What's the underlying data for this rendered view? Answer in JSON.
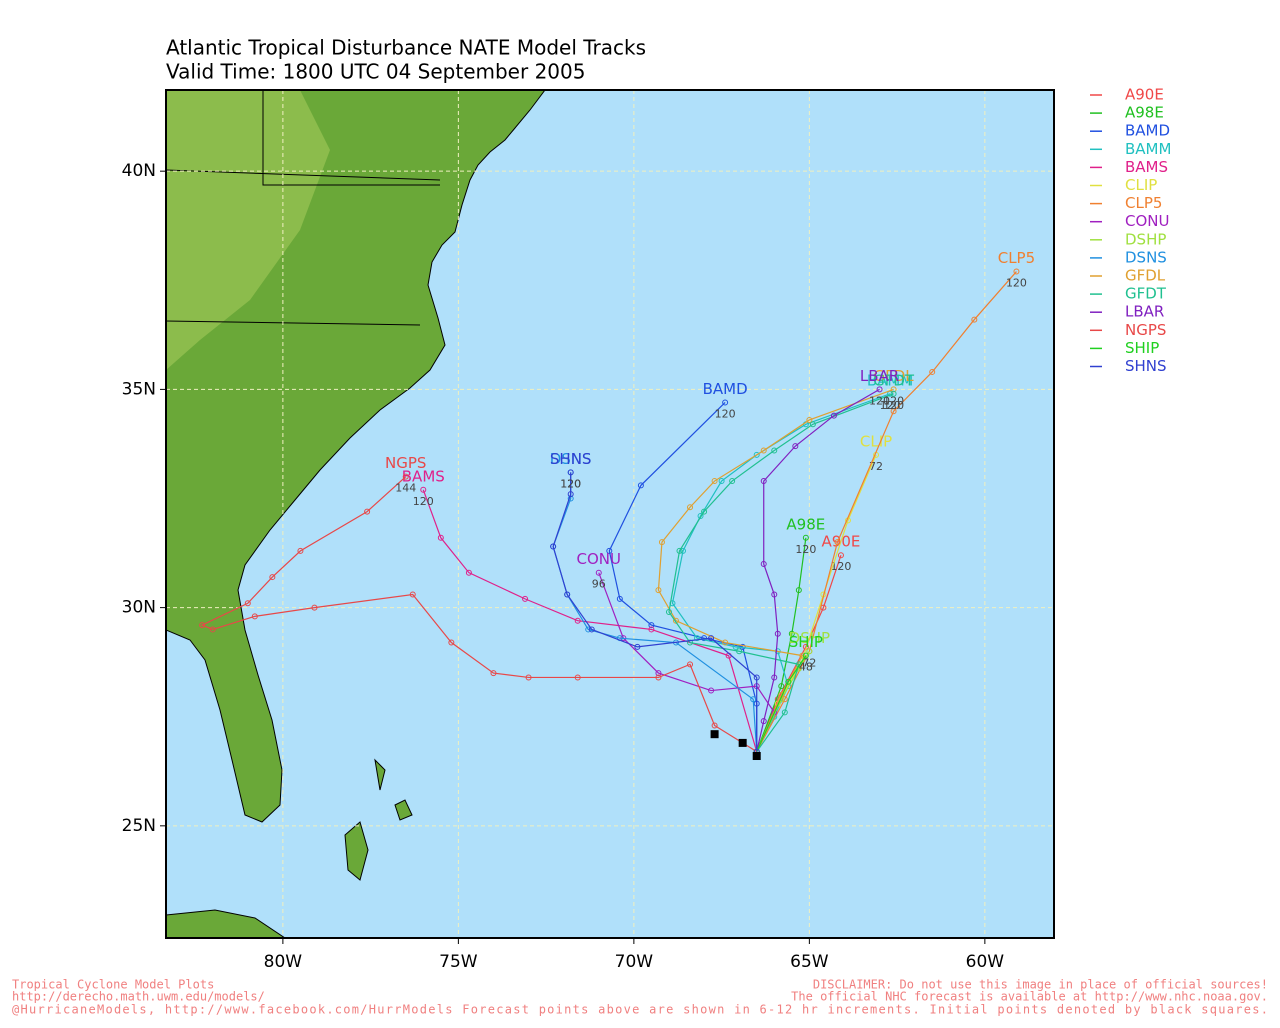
{
  "chart_data": {
    "type": "track-map",
    "title": "Atlantic Tropical Disturbance NATE Model Tracks",
    "subtitle": "Valid Time: 1800 UTC 04 September 2005",
    "xlim": [
      -83.33,
      -58.03
    ],
    "ylim": [
      22.43,
      41.86
    ],
    "xticks": [
      {
        "value": -80,
        "label": "80W"
      },
      {
        "value": -75,
        "label": "75W"
      },
      {
        "value": -70,
        "label": "70W"
      },
      {
        "value": -65,
        "label": "65W"
      },
      {
        "value": -60,
        "label": "60W"
      }
    ],
    "yticks": [
      {
        "value": 25,
        "label": "25N"
      },
      {
        "value": 30,
        "label": "30N"
      },
      {
        "value": 35,
        "label": "35N"
      },
      {
        "value": 40,
        "label": "40N"
      }
    ],
    "grid": true,
    "initial_points": {
      "lon": [
        -67.7,
        -66.9,
        -66.5
      ],
      "lat": [
        27.1,
        26.9,
        26.6
      ]
    },
    "series": [
      {
        "name": "A90E",
        "color": "#f04848",
        "end_label": "120",
        "lon": [
          -66.5,
          -65.9,
          -65.1,
          -64.6,
          -64.1
        ],
        "lat": [
          26.7,
          27.9,
          29.1,
          30.0,
          31.2
        ]
      },
      {
        "name": "A98E",
        "color": "#20c020",
        "end_label": "120",
        "lon": [
          -66.5,
          -65.8,
          -65.5,
          -65.3,
          -65.1
        ],
        "lat": [
          26.7,
          28.2,
          29.4,
          30.4,
          31.6
        ]
      },
      {
        "name": "BAMD",
        "color": "#2050e0",
        "end_label": "120",
        "lon": [
          -66.5,
          -66.5,
          -66.9,
          -68.0,
          -69.5,
          -70.4,
          -70.7,
          -69.8,
          -67.4
        ],
        "lat": [
          26.7,
          27.8,
          29.1,
          29.3,
          29.6,
          30.2,
          31.3,
          32.8,
          34.7
        ]
      },
      {
        "name": "BAMM",
        "color": "#20c0c0",
        "end_label": "120",
        "lon": [
          -66.5,
          -66.0,
          -65.6,
          -65.9,
          -67.1,
          -68.2,
          -68.9,
          -68.6,
          -68.1,
          -67.5,
          -66.5,
          -65.1,
          -62.7
        ],
        "lat": [
          26.7,
          27.5,
          28.2,
          29.0,
          29.1,
          29.3,
          30.1,
          31.3,
          32.1,
          32.9,
          33.5,
          34.2,
          34.9
        ]
      },
      {
        "name": "BAMS",
        "color": "#e0208a",
        "end_label": "120",
        "lon": [
          -66.5,
          -67.3,
          -69.5,
          -71.6,
          -73.1,
          -74.7,
          -75.5,
          -76.0
        ],
        "lat": [
          26.7,
          28.9,
          29.5,
          29.7,
          30.2,
          30.8,
          31.6,
          32.7
        ]
      },
      {
        "name": "CLIP",
        "color": "#e0e040",
        "end_label": "72",
        "lon": [
          -66.5,
          -65.9,
          -65.2,
          -64.6,
          -63.9,
          -63.1
        ],
        "lat": [
          26.7,
          27.8,
          28.8,
          30.3,
          32.0,
          33.5
        ]
      },
      {
        "name": "CLP5",
        "color": "#f08030",
        "end_label": "120",
        "lon": [
          -66.5,
          -65.7,
          -65.0,
          -64.2,
          -62.6,
          -61.5,
          -60.3,
          -59.1
        ],
        "lat": [
          26.7,
          27.9,
          29.0,
          31.5,
          34.5,
          35.4,
          36.6,
          37.7
        ]
      },
      {
        "name": "CONU",
        "color": "#a020c0",
        "end_label": "96",
        "lon": [
          -66.5,
          -66.0,
          -66.5,
          -67.8,
          -69.3,
          -70.3,
          -71.0
        ],
        "lat": [
          26.7,
          27.6,
          28.2,
          28.1,
          28.5,
          29.3,
          30.8
        ]
      },
      {
        "name": "DSHP",
        "color": "#a0e040",
        "end_label": "72",
        "lon": [
          -66.5,
          -65.8,
          -65.3,
          -65.0
        ],
        "lat": [
          26.7,
          27.9,
          28.6,
          29.0
        ]
      },
      {
        "name": "DSNS",
        "color": "#2090e0",
        "end_label": "120",
        "lon": [
          -66.5,
          -66.6,
          -68.8,
          -70.4,
          -71.3,
          -71.9,
          -72.3,
          -71.8,
          -71.8
        ],
        "lat": [
          26.7,
          27.9,
          29.2,
          29.3,
          29.5,
          30.3,
          31.4,
          32.5,
          33.1
        ]
      },
      {
        "name": "GFDL",
        "color": "#e0a030",
        "end_label": "120",
        "lon": [
          -66.5,
          -65.8,
          -65.2,
          -67.4,
          -68.8,
          -69.3,
          -69.2,
          -68.4,
          -67.7,
          -66.3,
          -65.0,
          -62.6
        ],
        "lat": [
          26.7,
          28.0,
          28.9,
          29.2,
          29.7,
          30.4,
          31.5,
          32.3,
          32.9,
          33.6,
          34.3,
          35.0
        ]
      },
      {
        "name": "GFDT",
        "color": "#20c090",
        "end_label": "120",
        "lon": [
          -66.5,
          -65.7,
          -65.3,
          -67.0,
          -68.4,
          -69.0,
          -68.7,
          -68.0,
          -67.2,
          -66.0,
          -64.9,
          -62.6
        ],
        "lat": [
          26.7,
          27.6,
          28.7,
          29.0,
          29.2,
          29.9,
          31.3,
          32.2,
          32.9,
          33.6,
          34.2,
          34.9
        ]
      },
      {
        "name": "LBAR",
        "color": "#8020c0",
        "end_label": "120",
        "lon": [
          -66.5,
          -66.3,
          -66.0,
          -65.9,
          -66.0,
          -66.3,
          -66.3,
          -65.4,
          -64.3,
          -63.0
        ],
        "lat": [
          26.7,
          27.4,
          28.4,
          29.4,
          30.3,
          31.0,
          32.9,
          33.7,
          34.4,
          35.0
        ]
      },
      {
        "name": "NGPS",
        "color": "#e84848",
        "end_label": "144",
        "lon": [
          -66.5,
          -67.7,
          -68.4,
          -69.3,
          -71.6,
          -73.0,
          -74.0,
          -75.2,
          -76.3,
          -79.1,
          -80.8,
          -82.0,
          -82.3,
          -81.0,
          -80.3,
          -79.5,
          -77.6,
          -76.5
        ],
        "lat": [
          26.7,
          27.3,
          28.7,
          28.4,
          28.4,
          28.4,
          28.5,
          29.2,
          30.3,
          30.0,
          29.8,
          29.5,
          29.6,
          30.1,
          30.7,
          31.3,
          32.2,
          33.0
        ]
      },
      {
        "name": "SHIP",
        "color": "#20d020",
        "end_label": "48",
        "lon": [
          -66.5,
          -65.6,
          -65.1
        ],
        "lat": [
          26.7,
          28.3,
          28.9
        ]
      },
      {
        "name": "SHNS",
        "color": "#3040d0",
        "end_label": "120",
        "lon": [
          -66.5,
          -66.5,
          -67.8,
          -69.9,
          -71.2,
          -71.9,
          -72.3,
          -71.8,
          -71.8
        ],
        "lat": [
          26.7,
          28.4,
          29.3,
          29.1,
          29.5,
          30.3,
          31.4,
          32.6,
          33.1
        ]
      }
    ]
  },
  "footer": {
    "left": [
      "Tropical Cyclone Model Plots",
      "http://derecho.math.uwm.edu/models/"
    ],
    "right": [
      "DISCLAIMER: Do not use this image in place of official sources!",
      "The official NHC forecast is available at http://www.nhc.noaa.gov."
    ],
    "bottom": "@HurricaneModels, http://www.facebook.com/HurrModels  Forecast points above are shown in 6-12 hr increments. Initial points denoted by black squares."
  }
}
